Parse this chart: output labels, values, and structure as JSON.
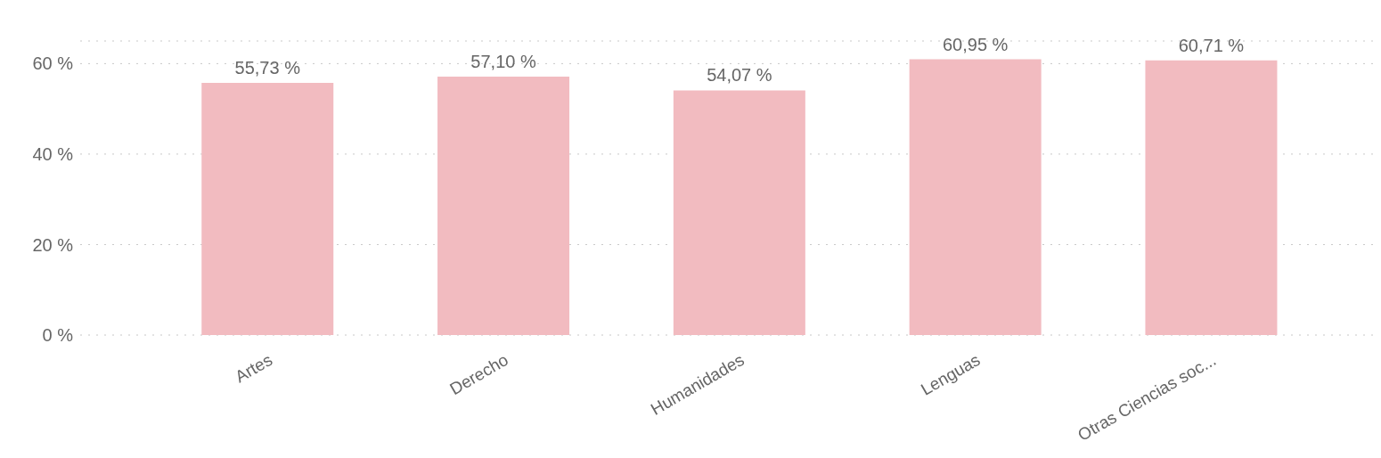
{
  "chart_data": {
    "type": "bar",
    "categories": [
      "Artes",
      "Derecho",
      "Humanidades",
      "Lenguas",
      "Otras Ciencias soc..."
    ],
    "values": [
      55.73,
      57.1,
      54.07,
      60.95,
      60.71
    ],
    "value_labels": [
      "55,73 %",
      "57,10 %",
      "54,07 %",
      "60,95 %",
      "60,71 %"
    ],
    "color": "#f2bbc0",
    "ylim": [
      0,
      65
    ],
    "yticks": [
      {
        "value": 0,
        "label": "0 %"
      },
      {
        "value": 20,
        "label": "20 %"
      },
      {
        "value": 40,
        "label": "40 %"
      },
      {
        "value": 60,
        "label": "60 %"
      }
    ],
    "grid": "y"
  }
}
